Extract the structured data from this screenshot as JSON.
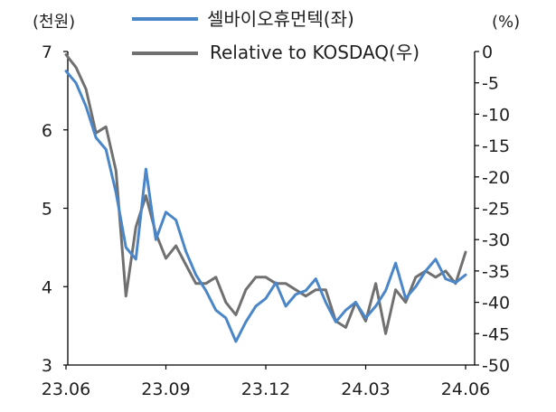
{
  "chart_data": {
    "type": "line",
    "title": "",
    "y_left_unit": "(천원)",
    "y_right_unit": "(%)",
    "x_ticks": [
      "23.06",
      "23.09",
      "23.12",
      "24.03",
      "24.06"
    ],
    "ylim_left": [
      3,
      7
    ],
    "yticks_left": [
      "7",
      "6",
      "5",
      "4",
      "3"
    ],
    "ylim_right": [
      -50,
      0
    ],
    "yticks_right": [
      "0",
      "-5",
      "-10",
      "-15",
      "-20",
      "-25",
      "-30",
      "-35",
      "-40",
      "-45",
      "-50"
    ],
    "legend_position": "top-center",
    "series": [
      {
        "name": "셀바이오휴먼텍(좌)",
        "axis": "left",
        "color": "#4A86C8",
        "x": [
          0,
          0.025,
          0.05,
          0.075,
          0.1,
          0.125,
          0.15,
          0.175,
          0.2,
          0.225,
          0.25,
          0.275,
          0.3,
          0.325,
          0.35,
          0.375,
          0.4,
          0.425,
          0.45,
          0.475,
          0.5,
          0.525,
          0.55,
          0.575,
          0.6,
          0.625,
          0.65,
          0.675,
          0.7,
          0.725,
          0.75,
          0.775,
          0.8,
          0.825,
          0.85,
          0.875,
          0.9,
          0.925,
          0.95,
          0.975,
          1
        ],
        "values": [
          6.75,
          6.6,
          6.3,
          5.9,
          5.75,
          5.2,
          4.5,
          4.35,
          5.5,
          4.6,
          4.95,
          4.85,
          4.45,
          4.15,
          3.95,
          3.7,
          3.6,
          3.3,
          3.55,
          3.75,
          3.85,
          4.05,
          3.75,
          3.9,
          3.95,
          4.1,
          3.8,
          3.55,
          3.7,
          3.8,
          3.6,
          3.75,
          3.95,
          4.3,
          3.85,
          4.0,
          4.2,
          4.35,
          4.1,
          4.05,
          4.15
        ]
      },
      {
        "name": "Relative to KOSDAQ(우)",
        "axis": "right",
        "color": "#707070",
        "x": [
          0,
          0.025,
          0.05,
          0.075,
          0.1,
          0.125,
          0.15,
          0.175,
          0.2,
          0.225,
          0.25,
          0.275,
          0.3,
          0.325,
          0.35,
          0.375,
          0.4,
          0.425,
          0.45,
          0.475,
          0.5,
          0.525,
          0.55,
          0.575,
          0.6,
          0.625,
          0.65,
          0.675,
          0.7,
          0.725,
          0.75,
          0.775,
          0.8,
          0.825,
          0.85,
          0.875,
          0.9,
          0.925,
          0.95,
          0.975,
          1
        ],
        "values": [
          -0.5,
          -2.5,
          -6,
          -13,
          -12,
          -19,
          -39,
          -28,
          -23,
          -29,
          -33,
          -31,
          -34,
          -37,
          -37,
          -36,
          -40,
          -42,
          -38,
          -36,
          -36,
          -37,
          -37,
          -38,
          -39,
          -38,
          -38,
          -43,
          -44,
          -40,
          -43,
          -37,
          -45,
          -38,
          -40,
          -36,
          -35,
          -36,
          -35,
          -37,
          -32
        ]
      }
    ]
  }
}
